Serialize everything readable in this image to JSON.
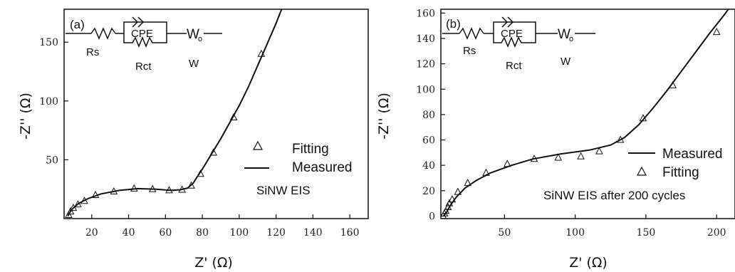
{
  "chart_data": [
    {
      "type": "scatter",
      "panel_label": "(a)",
      "xlabel": "Z' (Ω)",
      "ylabel": "-Z'' (Ω)",
      "xlim": [
        5,
        170
      ],
      "ylim": [
        0,
        178
      ],
      "x_ticks": [
        20,
        40,
        60,
        80,
        100,
        120,
        140,
        160
      ],
      "y_ticks": [
        50,
        100,
        150
      ],
      "legend": {
        "position": "right",
        "fitting_label": "Fitting",
        "measured_label": "Measured"
      },
      "annotation": "SiNW EIS",
      "circuit": {
        "cpe": "CPE",
        "warburg": "W",
        "warburg_symbol": "W",
        "warburg_sub": "o",
        "rs": "Rs",
        "rct": "Rct"
      },
      "series": [
        {
          "name": "Measured",
          "style": "line",
          "points": [
            [
              7,
              2
            ],
            [
              8,
              5
            ],
            [
              10,
              9
            ],
            [
              13,
              13
            ],
            [
              18,
              17
            ],
            [
              25,
              21
            ],
            [
              35,
              24
            ],
            [
              45,
              25.5
            ],
            [
              55,
              25
            ],
            [
              63,
              24
            ],
            [
              68,
              24.5
            ],
            [
              72,
              26
            ],
            [
              75,
              30
            ],
            [
              77,
              35
            ],
            [
              80,
              42
            ],
            [
              85,
              55
            ],
            [
              90,
              68
            ],
            [
              95,
              82
            ],
            [
              100,
              96
            ],
            [
              105,
              112
            ],
            [
              110,
              130
            ],
            [
              115,
              148
            ],
            [
              120,
              166
            ],
            [
              123,
              178
            ]
          ]
        },
        {
          "name": "Fitting",
          "style": "triangle",
          "points": [
            [
              7.5,
              3
            ],
            [
              8.5,
              6
            ],
            [
              10,
              9
            ],
            [
              12.5,
              12
            ],
            [
              16,
              15
            ],
            [
              22,
              20
            ],
            [
              32,
              23
            ],
            [
              43,
              25.5
            ],
            [
              53,
              25
            ],
            [
              62,
              24
            ],
            [
              69,
              24.5
            ],
            [
              74,
              28
            ],
            [
              79,
              38
            ],
            [
              86,
              56
            ],
            [
              97,
              86
            ],
            [
              112,
              140
            ]
          ]
        }
      ]
    },
    {
      "type": "scatter",
      "panel_label": "(b)",
      "xlabel": "Z' (Ω)",
      "ylabel": "-Z'' (Ω)",
      "xlim": [
        5,
        213
      ],
      "ylim": [
        -2,
        163
      ],
      "x_ticks": [
        50,
        100,
        150,
        200
      ],
      "y_ticks": [
        0,
        20,
        40,
        60,
        80,
        100,
        120,
        140,
        160
      ],
      "legend": {
        "position": "right",
        "fitting_label": "Fitting",
        "measured_label": "Measured"
      },
      "annotation": "SiNW EIS after 200 cycles",
      "circuit": {
        "cpe": "CPE",
        "warburg": "W",
        "warburg_symbol": "W",
        "warburg_sub": "o",
        "rs": "Rs",
        "rct": "Rct"
      },
      "series": [
        {
          "name": "Measured",
          "style": "line",
          "points": [
            [
              7,
              0
            ],
            [
              9,
              3
            ],
            [
              12,
              9
            ],
            [
              16,
              15
            ],
            [
              22,
              22
            ],
            [
              30,
              28
            ],
            [
              40,
              34
            ],
            [
              55,
              40
            ],
            [
              70,
              45
            ],
            [
              90,
              49
            ],
            [
              110,
              52
            ],
            [
              125,
              56
            ],
            [
              135,
              62
            ],
            [
              145,
              72
            ],
            [
              155,
              85
            ],
            [
              165,
              99
            ],
            [
              175,
              114
            ],
            [
              185,
              129
            ],
            [
              195,
              144
            ],
            [
              205,
              158
            ],
            [
              213,
              170
            ]
          ]
        },
        {
          "name": "Fitting",
          "style": "triangle",
          "points": [
            [
              6.5,
              0
            ],
            [
              7.5,
              2
            ],
            [
              8.5,
              4
            ],
            [
              10,
              7
            ],
            [
              11,
              10
            ],
            [
              13,
              13
            ],
            [
              17,
              19
            ],
            [
              24,
              26
            ],
            [
              37,
              34
            ],
            [
              52,
              41
            ],
            [
              71,
              45
            ],
            [
              88,
              46
            ],
            [
              104,
              47
            ],
            [
              117,
              51
            ],
            [
              132,
              60
            ],
            [
              148,
              77
            ],
            [
              169,
              103
            ],
            [
              200,
              145
            ]
          ]
        }
      ]
    }
  ]
}
